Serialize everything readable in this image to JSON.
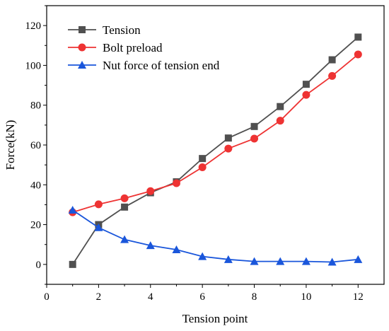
{
  "chart_data": {
    "type": "line",
    "title": "",
    "xlabel": "Tension point",
    "ylabel": "Force(kN)",
    "xlim": [
      0,
      13
    ],
    "ylim": [
      -10,
      130
    ],
    "xticks": [
      0,
      2,
      4,
      6,
      8,
      10,
      12
    ],
    "yticks": [
      0,
      20,
      40,
      60,
      80,
      100,
      120
    ],
    "grid": false,
    "legend_position": "top-left",
    "series": [
      {
        "name": "Tension",
        "color": "#505050",
        "marker": "square",
        "x": [
          1,
          2,
          3,
          4,
          5,
          6,
          7,
          8,
          9,
          10,
          11,
          12
        ],
        "y": [
          0,
          20,
          28.8,
          36,
          41.5,
          53.2,
          63.5,
          69.3,
          79.3,
          90.5,
          102.8,
          114.2
        ]
      },
      {
        "name": "Bolt preload",
        "color": "#ee3333",
        "marker": "circle",
        "x": [
          1,
          2,
          3,
          4,
          5,
          6,
          7,
          8,
          9,
          10,
          11,
          12
        ],
        "y": [
          26.2,
          30.2,
          33.2,
          36.8,
          40.8,
          48.8,
          58.2,
          63.2,
          72.2,
          85.2,
          94.7,
          105.5
        ]
      },
      {
        "name": "Nut force of tension end",
        "color": "#1a56db",
        "marker": "triangle",
        "x": [
          1,
          2,
          3,
          4,
          5,
          6,
          7,
          8,
          9,
          10,
          11,
          12
        ],
        "y": [
          27.3,
          18.5,
          12.5,
          9.5,
          7.4,
          4.0,
          2.5,
          1.5,
          1.5,
          1.5,
          1.2,
          2.5
        ]
      }
    ]
  }
}
